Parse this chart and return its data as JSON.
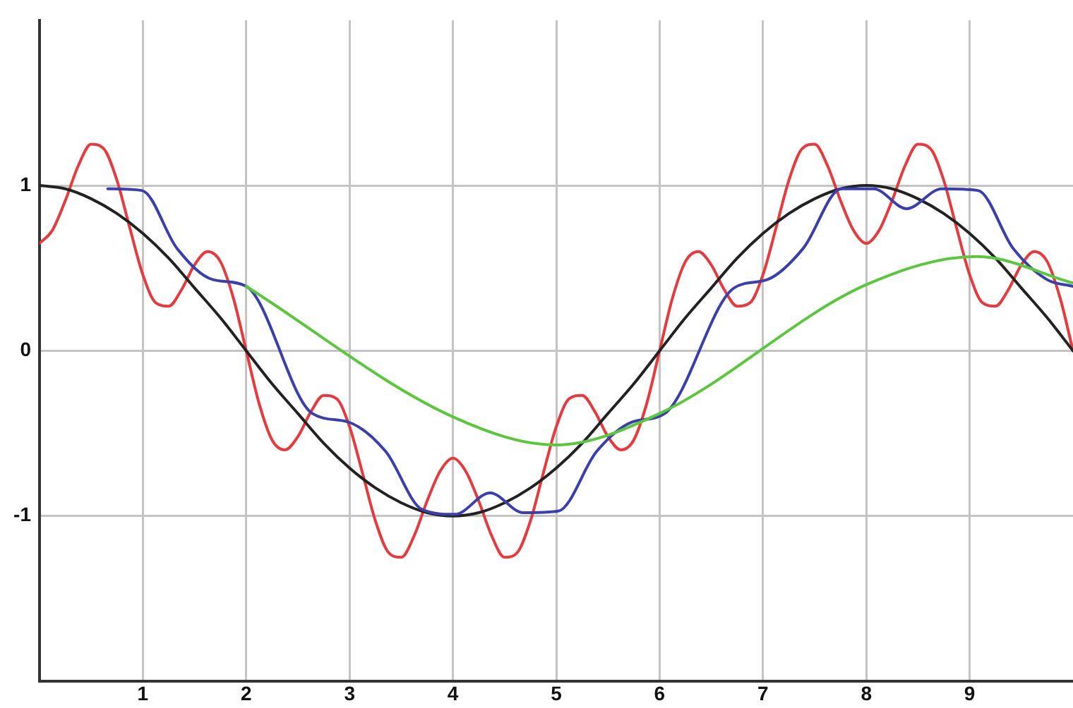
{
  "chart_data": {
    "type": "line",
    "xlim": [
      0,
      10
    ],
    "xticks": [
      1,
      2,
      3,
      4,
      5,
      6,
      7,
      8,
      9
    ],
    "ylim": [
      -2,
      2
    ],
    "yticks": [
      -1,
      0,
      1
    ],
    "grid": true,
    "marker": "none",
    "line_style": "solid",
    "series": [
      {
        "color": "#e53b3f",
        "x": [
          0,
          0.125,
          0.25,
          0.375,
          0.5,
          0.625,
          0.75,
          0.875,
          1,
          1.125,
          1.25,
          1.375,
          1.5,
          1.625,
          1.75,
          1.875,
          2,
          2.125,
          2.25,
          2.375,
          2.5,
          2.625,
          2.75,
          2.875,
          3,
          3.125,
          3.25,
          3.375,
          3.5,
          3.625,
          3.75,
          3.875,
          4,
          4.125,
          4.25,
          4.375,
          4.5,
          4.625,
          4.75,
          4.875,
          5,
          5.125,
          5.25,
          5.375,
          5.5,
          5.625,
          5.75,
          5.875,
          6,
          6.125,
          6.25,
          6.375,
          6.5,
          6.625,
          6.75,
          6.875,
          7,
          7.125,
          7.25,
          7.375,
          7.5,
          7.625,
          7.75,
          7.875,
          8,
          8.125,
          8.25,
          8.375,
          8.5,
          8.625,
          8.75,
          8.875,
          9,
          9.125,
          9.25,
          9.375,
          9.5,
          9.625,
          9.75,
          9.875,
          10
        ],
        "values": [
          0.65,
          0.73,
          0.91,
          1.12,
          1.25,
          1.22,
          1.03,
          0.74,
          0.46,
          0.29,
          0.27,
          0.37,
          0.52,
          0.6,
          0.54,
          0.32,
          0,
          -0.32,
          -0.54,
          -0.6,
          -0.52,
          -0.37,
          -0.27,
          -0.29,
          -0.46,
          -0.74,
          -1.03,
          -1.22,
          -1.25,
          -1.12,
          -0.91,
          -0.73,
          -0.65,
          -0.73,
          -0.91,
          -1.12,
          -1.25,
          -1.22,
          -1.03,
          -0.74,
          -0.46,
          -0.29,
          -0.27,
          -0.37,
          -0.52,
          -0.6,
          -0.54,
          -0.32,
          0,
          0.32,
          0.54,
          0.6,
          0.52,
          0.37,
          0.27,
          0.29,
          0.46,
          0.74,
          1.03,
          1.22,
          1.25,
          1.12,
          0.91,
          0.73,
          0.65,
          0.73,
          0.91,
          1.12,
          1.25,
          1.22,
          1.03,
          0.74,
          0.46,
          0.29,
          0.27,
          0.37,
          0.52,
          0.6,
          0.54,
          0.32,
          0
        ]
      },
      {
        "color": "#222222",
        "x": [
          0,
          0.25,
          0.5,
          0.75,
          1,
          1.25,
          1.5,
          1.75,
          2,
          2.25,
          2.5,
          2.75,
          3,
          3.25,
          3.5,
          3.75,
          4,
          4.25,
          4.5,
          4.75,
          5,
          5.25,
          5.5,
          5.75,
          6,
          6.25,
          6.5,
          6.75,
          7,
          7.25,
          7.5,
          7.75,
          8,
          8.25,
          8.5,
          8.75,
          9,
          9.25,
          9.5,
          9.75,
          10
        ],
        "values": [
          1,
          0.98,
          0.92,
          0.83,
          0.71,
          0.56,
          0.38,
          0.2,
          0,
          -0.2,
          -0.38,
          -0.56,
          -0.71,
          -0.83,
          -0.92,
          -0.98,
          -1,
          -0.98,
          -0.92,
          -0.83,
          -0.71,
          -0.56,
          -0.38,
          -0.2,
          0,
          0.2,
          0.38,
          0.56,
          0.71,
          0.83,
          0.92,
          0.98,
          1,
          0.98,
          0.92,
          0.83,
          0.71,
          0.56,
          0.38,
          0.2,
          0
        ]
      },
      {
        "color": "#3b3fab",
        "x": [
          0.66,
          0.99,
          1.33,
          1.68,
          2,
          2.64,
          2.98,
          3.35,
          3.7,
          4.02,
          4.36,
          4.68,
          5.02,
          5.39,
          5.74,
          6.05,
          6.72,
          7.04,
          7.39,
          7.76,
          8.07,
          8.39,
          8.73,
          9.08,
          9.42,
          9.75,
          10
        ],
        "values": [
          0.98,
          0.97,
          0.62,
          0.43,
          0.39,
          -0.38,
          -0.43,
          -0.61,
          -0.96,
          -0.99,
          -0.86,
          -0.98,
          -0.97,
          -0.61,
          -0.43,
          -0.38,
          0.38,
          0.43,
          0.62,
          0.98,
          0.98,
          0.86,
          0.98,
          0.97,
          0.62,
          0.43,
          0.39
        ]
      },
      {
        "color": "#5cc63f",
        "x": [
          2,
          4,
          5,
          6,
          8,
          9.07,
          10
        ],
        "values": [
          0.39,
          -0.4,
          -0.57,
          -0.38,
          0.4,
          0.57,
          0.41
        ]
      }
    ]
  }
}
